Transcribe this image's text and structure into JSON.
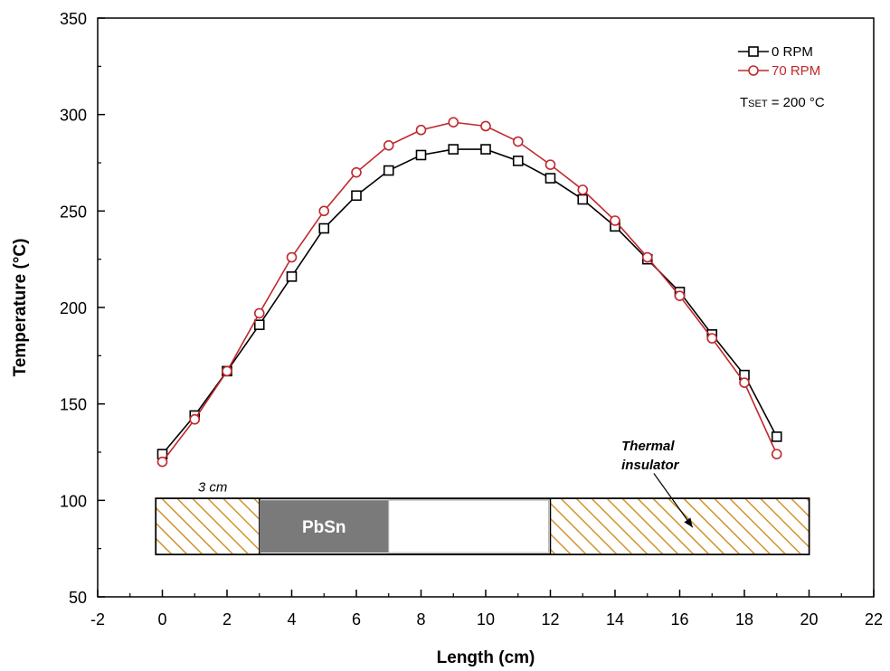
{
  "chart_data": {
    "type": "line",
    "xlabel": "Length (cm)",
    "ylabel": "Temperature (°C)",
    "xlim": [
      -2,
      22
    ],
    "ylim": [
      50,
      350
    ],
    "x_ticks": [
      -2,
      0,
      2,
      4,
      6,
      8,
      10,
      12,
      14,
      16,
      18,
      20,
      22
    ],
    "y_ticks": [
      50,
      100,
      150,
      200,
      250,
      300,
      350
    ],
    "grid": false,
    "legend_position": "top-right",
    "x": [
      0,
      1,
      2,
      3,
      4,
      5,
      6,
      7,
      8,
      9,
      10,
      11,
      12,
      13,
      14,
      15,
      16,
      17,
      18,
      19
    ],
    "series": [
      {
        "name": "0 RPM",
        "marker": "square",
        "color": "#000000",
        "values": [
          124,
          144,
          167,
          191,
          216,
          241,
          258,
          271,
          279,
          282,
          282,
          276,
          267,
          256,
          242,
          225,
          208,
          186,
          165,
          133
        ]
      },
      {
        "name": "70 RPM",
        "marker": "circle",
        "color": "#c0282c",
        "values": [
          120,
          142,
          167,
          197,
          226,
          250,
          270,
          284,
          292,
          296,
          294,
          286,
          274,
          261,
          245,
          226,
          206,
          184,
          161,
          124
        ]
      }
    ],
    "annotations": {
      "setpoint_prefix": "T",
      "setpoint_sub": "SET",
      "setpoint_rest": " = 200 °C",
      "dimension_label": "3 cm",
      "material_label": "PbSn",
      "insulator_label_line1": "Thermal",
      "insulator_label_line2": "insulator"
    },
    "inset": {
      "outer_x": [
        -0.2,
        20
      ],
      "band_y": [
        72,
        101
      ],
      "hatched_left_x": [
        -0.2,
        3
      ],
      "pbsn_x": [
        3,
        7
      ],
      "empty_x": [
        7,
        12
      ],
      "hatched_right_x": [
        12,
        20
      ],
      "hatch_color": "#d4932b",
      "pbsn_color": "#7a7a7a"
    }
  }
}
